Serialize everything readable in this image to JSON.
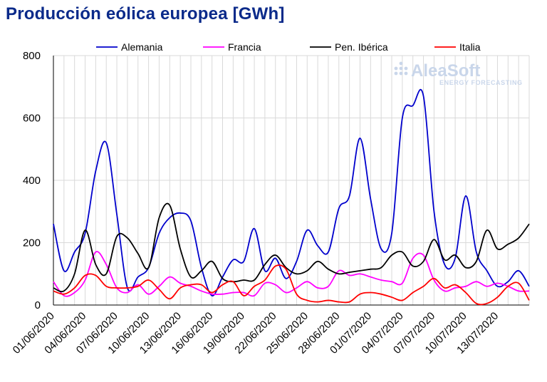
{
  "chart_data": {
    "type": "line",
    "title": "Producción eólica europea [GWh]",
    "ylim": [
      0,
      800
    ],
    "yticks": [
      0,
      200,
      400,
      600,
      800
    ],
    "xticks": [
      "01/06/2020",
      "04/06/2020",
      "07/06/2020",
      "10/06/2020",
      "13/06/2020",
      "16/06/2020",
      "19/06/2020",
      "22/06/2020",
      "25/06/2020",
      "28/06/2020",
      "01/07/2020",
      "04/07/2020",
      "07/07/2020",
      "10/07/2020",
      "13/07/2020"
    ],
    "x": [
      "01/06/2020",
      "02/06/2020",
      "03/06/2020",
      "04/06/2020",
      "05/06/2020",
      "06/06/2020",
      "07/06/2020",
      "08/06/2020",
      "09/06/2020",
      "10/06/2020",
      "11/06/2020",
      "12/06/2020",
      "13/06/2020",
      "14/06/2020",
      "15/06/2020",
      "16/06/2020",
      "17/06/2020",
      "18/06/2020",
      "19/06/2020",
      "20/06/2020",
      "21/06/2020",
      "22/06/2020",
      "23/06/2020",
      "24/06/2020",
      "25/06/2020",
      "26/06/2020",
      "27/06/2020",
      "28/06/2020",
      "29/06/2020",
      "30/06/2020",
      "01/07/2020",
      "02/07/2020",
      "03/07/2020",
      "04/07/2020",
      "05/07/2020",
      "06/07/2020",
      "07/07/2020",
      "08/07/2020",
      "09/07/2020",
      "10/07/2020",
      "11/07/2020",
      "12/07/2020",
      "13/07/2020",
      "14/07/2020",
      "15/07/2020",
      "16/07/2020"
    ],
    "grid": true,
    "legend_position": "top",
    "series": [
      {
        "name": "Alemania",
        "color": "#0000cc",
        "values": [
          260,
          110,
          170,
          230,
          430,
          520,
          290,
          55,
          90,
          120,
          230,
          280,
          295,
          270,
          120,
          30,
          90,
          145,
          140,
          245,
          110,
          150,
          85,
          140,
          240,
          190,
          170,
          310,
          350,
          535,
          340,
          180,
          230,
          600,
          640,
          670,
          300,
          130,
          150,
          350,
          170,
          110,
          60,
          75,
          110,
          60
        ]
      },
      {
        "name": "Francia",
        "color": "#ff00ff",
        "values": [
          75,
          30,
          40,
          80,
          170,
          130,
          55,
          40,
          65,
          35,
          60,
          90,
          70,
          60,
          45,
          35,
          35,
          40,
          40,
          30,
          70,
          65,
          40,
          55,
          75,
          55,
          60,
          110,
          95,
          100,
          90,
          80,
          75,
          70,
          150,
          160,
          80,
          45,
          55,
          60,
          75,
          60,
          70,
          60,
          45,
          45
        ]
      },
      {
        "name": "Pen. Ibérica",
        "color": "#000000",
        "values": [
          55,
          45,
          100,
          240,
          130,
          100,
          220,
          215,
          165,
          120,
          280,
          320,
          180,
          90,
          110,
          140,
          85,
          75,
          80,
          80,
          130,
          160,
          120,
          100,
          110,
          140,
          115,
          100,
          105,
          110,
          115,
          120,
          160,
          170,
          125,
          140,
          210,
          145,
          160,
          120,
          140,
          240,
          180,
          195,
          215,
          260
        ]
      },
      {
        "name": "Italia",
        "color": "#ff0000",
        "values": [
          45,
          35,
          55,
          95,
          95,
          60,
          55,
          55,
          60,
          80,
          50,
          20,
          55,
          65,
          65,
          40,
          65,
          75,
          30,
          60,
          80,
          125,
          115,
          35,
          15,
          10,
          15,
          10,
          10,
          35,
          40,
          35,
          25,
          15,
          40,
          60,
          85,
          55,
          65,
          40,
          5,
          5,
          25,
          60,
          70,
          15
        ]
      }
    ]
  },
  "watermark": {
    "text": "AleaSoft",
    "subtext": "ENERGY FORECASTING"
  }
}
